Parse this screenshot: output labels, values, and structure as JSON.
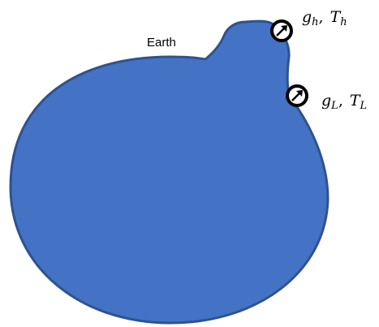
{
  "diagram": {
    "earth_label": "Earth",
    "body_fill": "#4472C4",
    "body_stroke": "#2F528F",
    "gauge_high": {
      "label_main": "g",
      "label_sub": "h",
      "sep": ",",
      "label_main2": "T",
      "label_sub2": "h",
      "icon": "gauge-icon"
    },
    "gauge_low": {
      "label_main": "g",
      "label_sub": "L",
      "sep": ",",
      "label_main2": "T",
      "label_sub2": "L",
      "icon": "gauge-icon"
    }
  }
}
